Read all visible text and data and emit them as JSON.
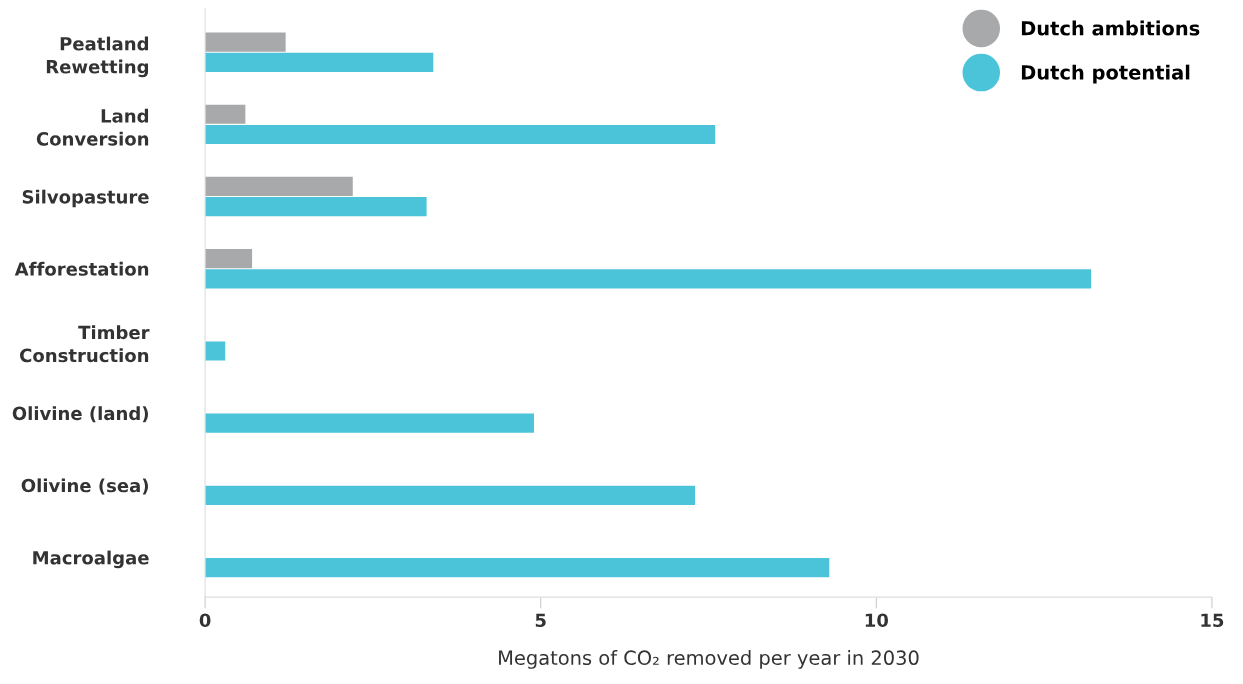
{
  "chart_data": {
    "type": "bar",
    "orientation": "horizontal",
    "xlabel": "Megatons of CO₂ removed per year in 2030",
    "categories": [
      "Peatland\nRewetting",
      "Land\nConversion",
      "Silvopasture",
      "Afforestation",
      "Timber\nConstruction",
      "Olivine (land)",
      "Olivine (sea)",
      "Macroalgae"
    ],
    "series": [
      {
        "name": "Dutch ambitions",
        "color": "#a7a9ab",
        "values": [
          1.2,
          0.6,
          2.2,
          0.7,
          null,
          null,
          null,
          null
        ]
      },
      {
        "name": "Dutch potential",
        "color": "#4bc4d9",
        "values": [
          3.4,
          7.6,
          3.3,
          13.2,
          0.3,
          4.9,
          7.3,
          9.3
        ]
      }
    ],
    "xlim": [
      0,
      15
    ],
    "xticks": [
      0,
      5,
      10,
      15
    ],
    "grid": false,
    "legend": "top right",
    "marker": "circle"
  }
}
